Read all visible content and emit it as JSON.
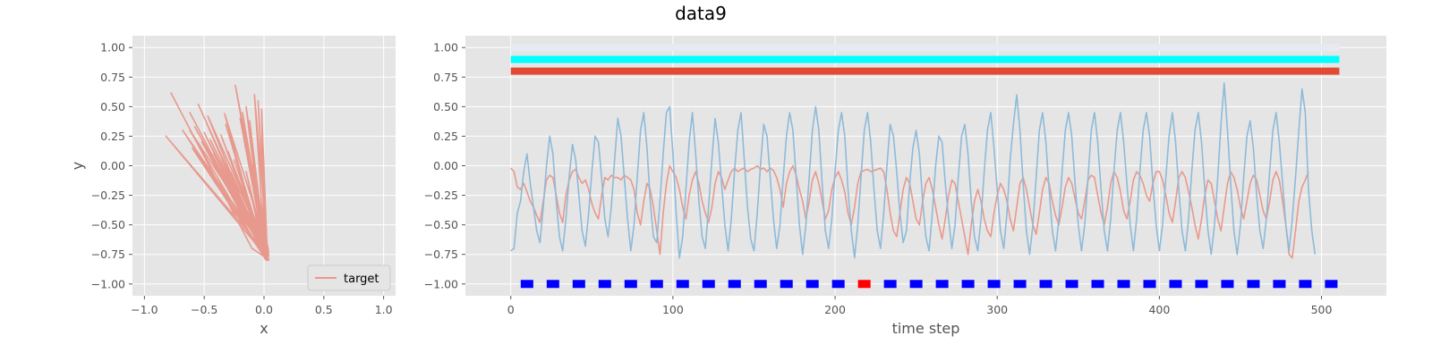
{
  "figure": {
    "title": "data9"
  },
  "chart_data": [
    {
      "type": "line",
      "xlabel": "x",
      "ylabel": "y",
      "xlim": [
        -1.1,
        1.1
      ],
      "ylim": [
        -1.1,
        1.1
      ],
      "xticks": [
        "−1.0",
        "−0.5",
        "0.0",
        "0.5",
        "1.0"
      ],
      "xtick_values": [
        -1.0,
        -0.5,
        0.0,
        0.5,
        1.0
      ],
      "yticks": [
        "1.00",
        "0.75",
        "0.50",
        "0.25",
        "0.00",
        "−0.25",
        "−0.50",
        "−0.75",
        "−1.00"
      ],
      "ytick_values": [
        1.0,
        0.75,
        0.5,
        0.25,
        0.0,
        -0.25,
        -0.5,
        -0.75,
        -1.0
      ],
      "grid": true,
      "legend": {
        "position": "lower-right",
        "entries": [
          {
            "label": "target",
            "color": "#E8998D"
          }
        ]
      },
      "series": [
        {
          "name": "target",
          "color": "#E8998D",
          "x": [
            -0.78,
            -0.1,
            0.02,
            -0.32,
            0.0,
            -0.62,
            0.03,
            -0.52,
            0.01,
            -0.24,
            0.04,
            -0.68,
            0.02,
            -0.42,
            0.0,
            -0.18,
            0.03,
            -0.55,
            0.01,
            -0.35,
            -0.02,
            -0.12,
            0.02,
            -0.6,
            0.04,
            -0.47,
            0.0,
            -0.28,
            0.03,
            -0.08,
            0.01,
            -0.5,
            0.02,
            -0.3,
            0.0,
            -0.2,
            0.04,
            -0.45,
            0.01,
            -0.38,
            -0.01,
            -0.15,
            0.03,
            -0.82,
            0.02,
            -0.58,
            0.0,
            -0.25,
            0.03,
            -0.05,
            0.02,
            -0.4,
            0.01,
            -0.22,
            0.02,
            -0.62,
            0.0,
            -0.33,
            0.04,
            -0.1,
            0.01,
            -0.48,
            0.02,
            -0.27,
            0.0,
            -0.02,
            0.03,
            -0.55,
            0.01,
            -0.36,
            -0.01,
            -0.15,
            0.02
          ],
          "y": [
            0.62,
            -0.7,
            -0.78,
            0.35,
            -0.74,
            0.45,
            -0.8,
            0.2,
            -0.72,
            0.68,
            -0.76,
            0.3,
            -0.79,
            0.1,
            -0.7,
            0.45,
            -0.78,
            0.52,
            -0.74,
            0.05,
            -0.68,
            0.38,
            -0.8,
            0.15,
            -0.73,
            0.42,
            -0.77,
            -0.05,
            -0.71,
            0.6,
            -0.79,
            0.28,
            -0.75,
            0.12,
            -0.69,
            0.4,
            -0.8,
            0.22,
            -0.72,
            -0.15,
            -0.66,
            0.5,
            -0.78,
            0.25,
            -0.74,
            0.33,
            -0.7,
            0.05,
            -0.76,
            0.55,
            -0.79,
            0.18,
            -0.71,
            -0.1,
            -0.68,
            0.3,
            -0.77,
            0.44,
            -0.73,
            0.0,
            -0.79,
            0.36,
            -0.75,
            -0.2,
            -0.65,
            0.48,
            -0.8,
            0.1,
            -0.72,
            0.26,
            -0.7,
            -0.05,
            -0.76
          ]
        }
      ]
    },
    {
      "type": "line",
      "xlabel": "time step",
      "ylabel": "",
      "xlim": [
        -28,
        540
      ],
      "ylim": [
        -1.1,
        1.1
      ],
      "xticks": [
        "0",
        "100",
        "200",
        "300",
        "400",
        "500"
      ],
      "xtick_values": [
        0,
        100,
        200,
        300,
        400,
        500
      ],
      "yticks": [
        "1.00",
        "0.75",
        "0.50",
        "0.25",
        "0.00",
        "−0.25",
        "−0.50",
        "−0.75",
        "−1.00"
      ],
      "ytick_values": [
        1.0,
        0.75,
        0.5,
        0.25,
        0.0,
        -0.25,
        -0.5,
        -0.75,
        -1.0
      ],
      "grid": true,
      "bands": [
        {
          "y": 1.0,
          "color": "#E8EAF2",
          "x_start": 0,
          "x_end": 511
        },
        {
          "y": 0.9,
          "color": "#00FFFF",
          "x_start": 0,
          "x_end": 511
        },
        {
          "y": 0.8,
          "color": "#E24A33",
          "x_start": 0,
          "x_end": 511
        }
      ],
      "markers": {
        "y": -1.0,
        "x_start": 10,
        "x_step": 16,
        "count": 32,
        "colors": [
          "#0000FF",
          "#0000FF",
          "#0000FF",
          "#0000FF",
          "#0000FF",
          "#0000FF",
          "#0000FF",
          "#0000FF",
          "#0000FF",
          "#0000FF",
          "#0000FF",
          "#0000FF",
          "#0000FF",
          "#FF0000",
          "#0000FF",
          "#0000FF",
          "#0000FF",
          "#0000FF",
          "#0000FF",
          "#0000FF",
          "#0000FF",
          "#0000FF",
          "#0000FF",
          "#0000FF",
          "#0000FF",
          "#0000FF",
          "#0000FF",
          "#0000FF",
          "#0000FF",
          "#0000FF",
          "#0000FF",
          "#0000FF"
        ]
      },
      "series": [
        {
          "color": "#E8998D",
          "x_step": 2,
          "x_start": 0,
          "values": [
            -0.02,
            -0.05,
            -0.18,
            -0.2,
            -0.15,
            -0.22,
            -0.3,
            -0.35,
            -0.42,
            -0.48,
            -0.3,
            -0.12,
            -0.08,
            -0.1,
            -0.25,
            -0.4,
            -0.48,
            -0.25,
            -0.12,
            -0.05,
            -0.03,
            -0.1,
            -0.15,
            -0.12,
            -0.2,
            -0.32,
            -0.4,
            -0.45,
            -0.25,
            -0.1,
            -0.12,
            -0.08,
            -0.1,
            -0.1,
            -0.12,
            -0.08,
            -0.1,
            -0.12,
            -0.2,
            -0.4,
            -0.5,
            -0.3,
            -0.15,
            -0.2,
            -0.35,
            -0.55,
            -0.75,
            -0.4,
            -0.15,
            0.0,
            -0.05,
            -0.1,
            -0.2,
            -0.35,
            -0.45,
            -0.25,
            -0.12,
            -0.05,
            -0.15,
            -0.3,
            -0.4,
            -0.48,
            -0.35,
            -0.15,
            -0.05,
            -0.1,
            -0.2,
            -0.12,
            -0.05,
            -0.02,
            -0.05,
            -0.03,
            -0.02,
            -0.05,
            -0.03,
            -0.02,
            0.0,
            -0.03,
            -0.02,
            -0.05,
            -0.02,
            -0.04,
            -0.1,
            -0.2,
            -0.35,
            -0.15,
            -0.05,
            0.0,
            -0.08,
            -0.2,
            -0.3,
            -0.45,
            -0.3,
            -0.12,
            -0.05,
            -0.15,
            -0.3,
            -0.45,
            -0.38,
            -0.2,
            -0.1,
            -0.05,
            -0.12,
            -0.22,
            -0.4,
            -0.5,
            -0.35,
            -0.15,
            -0.05,
            -0.04,
            -0.03,
            -0.05,
            -0.04,
            -0.03,
            -0.02,
            -0.05,
            -0.2,
            -0.4,
            -0.55,
            -0.6,
            -0.4,
            -0.2,
            -0.1,
            -0.15,
            -0.3,
            -0.45,
            -0.5,
            -0.3,
            -0.15,
            -0.1,
            -0.2,
            -0.35,
            -0.5,
            -0.62,
            -0.45,
            -0.25,
            -0.12,
            -0.15,
            -0.3,
            -0.45,
            -0.6,
            -0.75,
            -0.5,
            -0.3,
            -0.2,
            -0.3,
            -0.45,
            -0.55,
            -0.6,
            -0.4,
            -0.25,
            -0.15,
            -0.2,
            -0.3,
            -0.45,
            -0.55,
            -0.35,
            -0.15,
            -0.1,
            -0.2,
            -0.35,
            -0.5,
            -0.58,
            -0.4,
            -0.2,
            -0.1,
            -0.15,
            -0.3,
            -0.42,
            -0.5,
            -0.35,
            -0.18,
            -0.1,
            -0.15,
            -0.28,
            -0.4,
            -0.45,
            -0.3,
            -0.12,
            -0.08,
            -0.1,
            -0.25,
            -0.4,
            -0.5,
            -0.35,
            -0.15,
            -0.05,
            -0.1,
            -0.22,
            -0.38,
            -0.45,
            -0.3,
            -0.12,
            -0.05,
            -0.08,
            -0.15,
            -0.25,
            -0.3,
            -0.15,
            -0.05,
            -0.05,
            -0.12,
            -0.25,
            -0.4,
            -0.48,
            -0.3,
            -0.1,
            -0.05,
            -0.1,
            -0.22,
            -0.35,
            -0.5,
            -0.62,
            -0.45,
            -0.25,
            -0.12,
            -0.15,
            -0.3,
            -0.45,
            -0.55,
            -0.35,
            -0.15,
            -0.05,
            -0.1,
            -0.2,
            -0.35,
            -0.45,
            -0.3,
            -0.15,
            -0.08,
            -0.12,
            -0.25,
            -0.38,
            -0.45,
            -0.3,
            -0.12,
            -0.05,
            -0.12,
            -0.3,
            -0.5,
            -0.75,
            -0.78,
            -0.55,
            -0.3,
            -0.18,
            -0.12,
            -0.05
          ]
        },
        {
          "color": "#8EBAD9",
          "x_step": 2,
          "x_start": 0,
          "values": [
            -0.72,
            -0.7,
            -0.4,
            -0.3,
            -0.05,
            0.1,
            -0.15,
            -0.35,
            -0.55,
            -0.65,
            -0.35,
            0.0,
            0.25,
            0.1,
            -0.3,
            -0.6,
            -0.72,
            -0.45,
            -0.1,
            0.18,
            0.05,
            -0.25,
            -0.55,
            -0.68,
            -0.4,
            -0.05,
            0.25,
            0.2,
            -0.1,
            -0.45,
            -0.6,
            -0.35,
            0.05,
            0.4,
            0.25,
            -0.1,
            -0.45,
            -0.72,
            -0.5,
            -0.1,
            0.3,
            0.45,
            0.15,
            -0.3,
            -0.6,
            -0.65,
            -0.3,
            0.1,
            0.45,
            0.5,
            0.1,
            -0.4,
            -0.78,
            -0.6,
            -0.2,
            0.2,
            0.45,
            0.1,
            -0.3,
            -0.6,
            -0.7,
            -0.35,
            0.05,
            0.4,
            0.2,
            -0.15,
            -0.5,
            -0.72,
            -0.45,
            -0.05,
            0.3,
            0.45,
            0.05,
            -0.35,
            -0.62,
            -0.72,
            -0.4,
            0.0,
            0.35,
            0.25,
            -0.1,
            -0.45,
            -0.7,
            -0.5,
            -0.1,
            0.25,
            0.45,
            0.3,
            -0.1,
            -0.5,
            -0.75,
            -0.5,
            -0.1,
            0.3,
            0.5,
            0.3,
            -0.15,
            -0.55,
            -0.7,
            -0.45,
            -0.05,
            0.3,
            0.45,
            0.25,
            -0.2,
            -0.55,
            -0.78,
            -0.5,
            -0.1,
            0.3,
            0.45,
            0.2,
            -0.2,
            -0.55,
            -0.7,
            -0.4,
            0.0,
            0.35,
            0.25,
            -0.05,
            -0.4,
            -0.65,
            -0.55,
            -0.15,
            0.15,
            0.3,
            0.1,
            -0.3,
            -0.6,
            -0.72,
            -0.4,
            0.0,
            0.25,
            0.2,
            -0.15,
            -0.45,
            -0.7,
            -0.5,
            -0.1,
            0.25,
            0.35,
            0.1,
            -0.3,
            -0.6,
            -0.72,
            -0.45,
            -0.05,
            0.3,
            0.45,
            0.15,
            -0.2,
            -0.55,
            -0.7,
            -0.4,
            0.05,
            0.35,
            0.6,
            0.3,
            -0.15,
            -0.55,
            -0.75,
            -0.5,
            -0.1,
            0.3,
            0.45,
            0.2,
            -0.2,
            -0.55,
            -0.72,
            -0.45,
            -0.05,
            0.3,
            0.45,
            0.25,
            -0.15,
            -0.5,
            -0.72,
            -0.5,
            -0.1,
            0.3,
            0.45,
            0.2,
            -0.2,
            -0.55,
            -0.72,
            -0.45,
            -0.05,
            0.3,
            0.45,
            0.2,
            -0.15,
            -0.5,
            -0.72,
            -0.45,
            -0.05,
            0.3,
            0.45,
            0.25,
            -0.15,
            -0.5,
            -0.72,
            -0.5,
            -0.1,
            0.25,
            0.45,
            0.2,
            -0.2,
            -0.55,
            -0.72,
            -0.45,
            -0.05,
            0.3,
            0.45,
            0.2,
            -0.2,
            -0.55,
            -0.75,
            -0.5,
            -0.1,
            0.35,
            0.7,
            0.3,
            -0.15,
            -0.55,
            -0.75,
            -0.5,
            -0.1,
            0.25,
            0.38,
            0.15,
            -0.25,
            -0.55,
            -0.7,
            -0.45,
            -0.05,
            0.3,
            0.45,
            0.2,
            -0.15,
            -0.5,
            -0.72,
            -0.45,
            -0.1,
            0.3,
            0.65,
            0.45,
            -0.2,
            -0.55,
            -0.75
          ]
        }
      ]
    }
  ]
}
